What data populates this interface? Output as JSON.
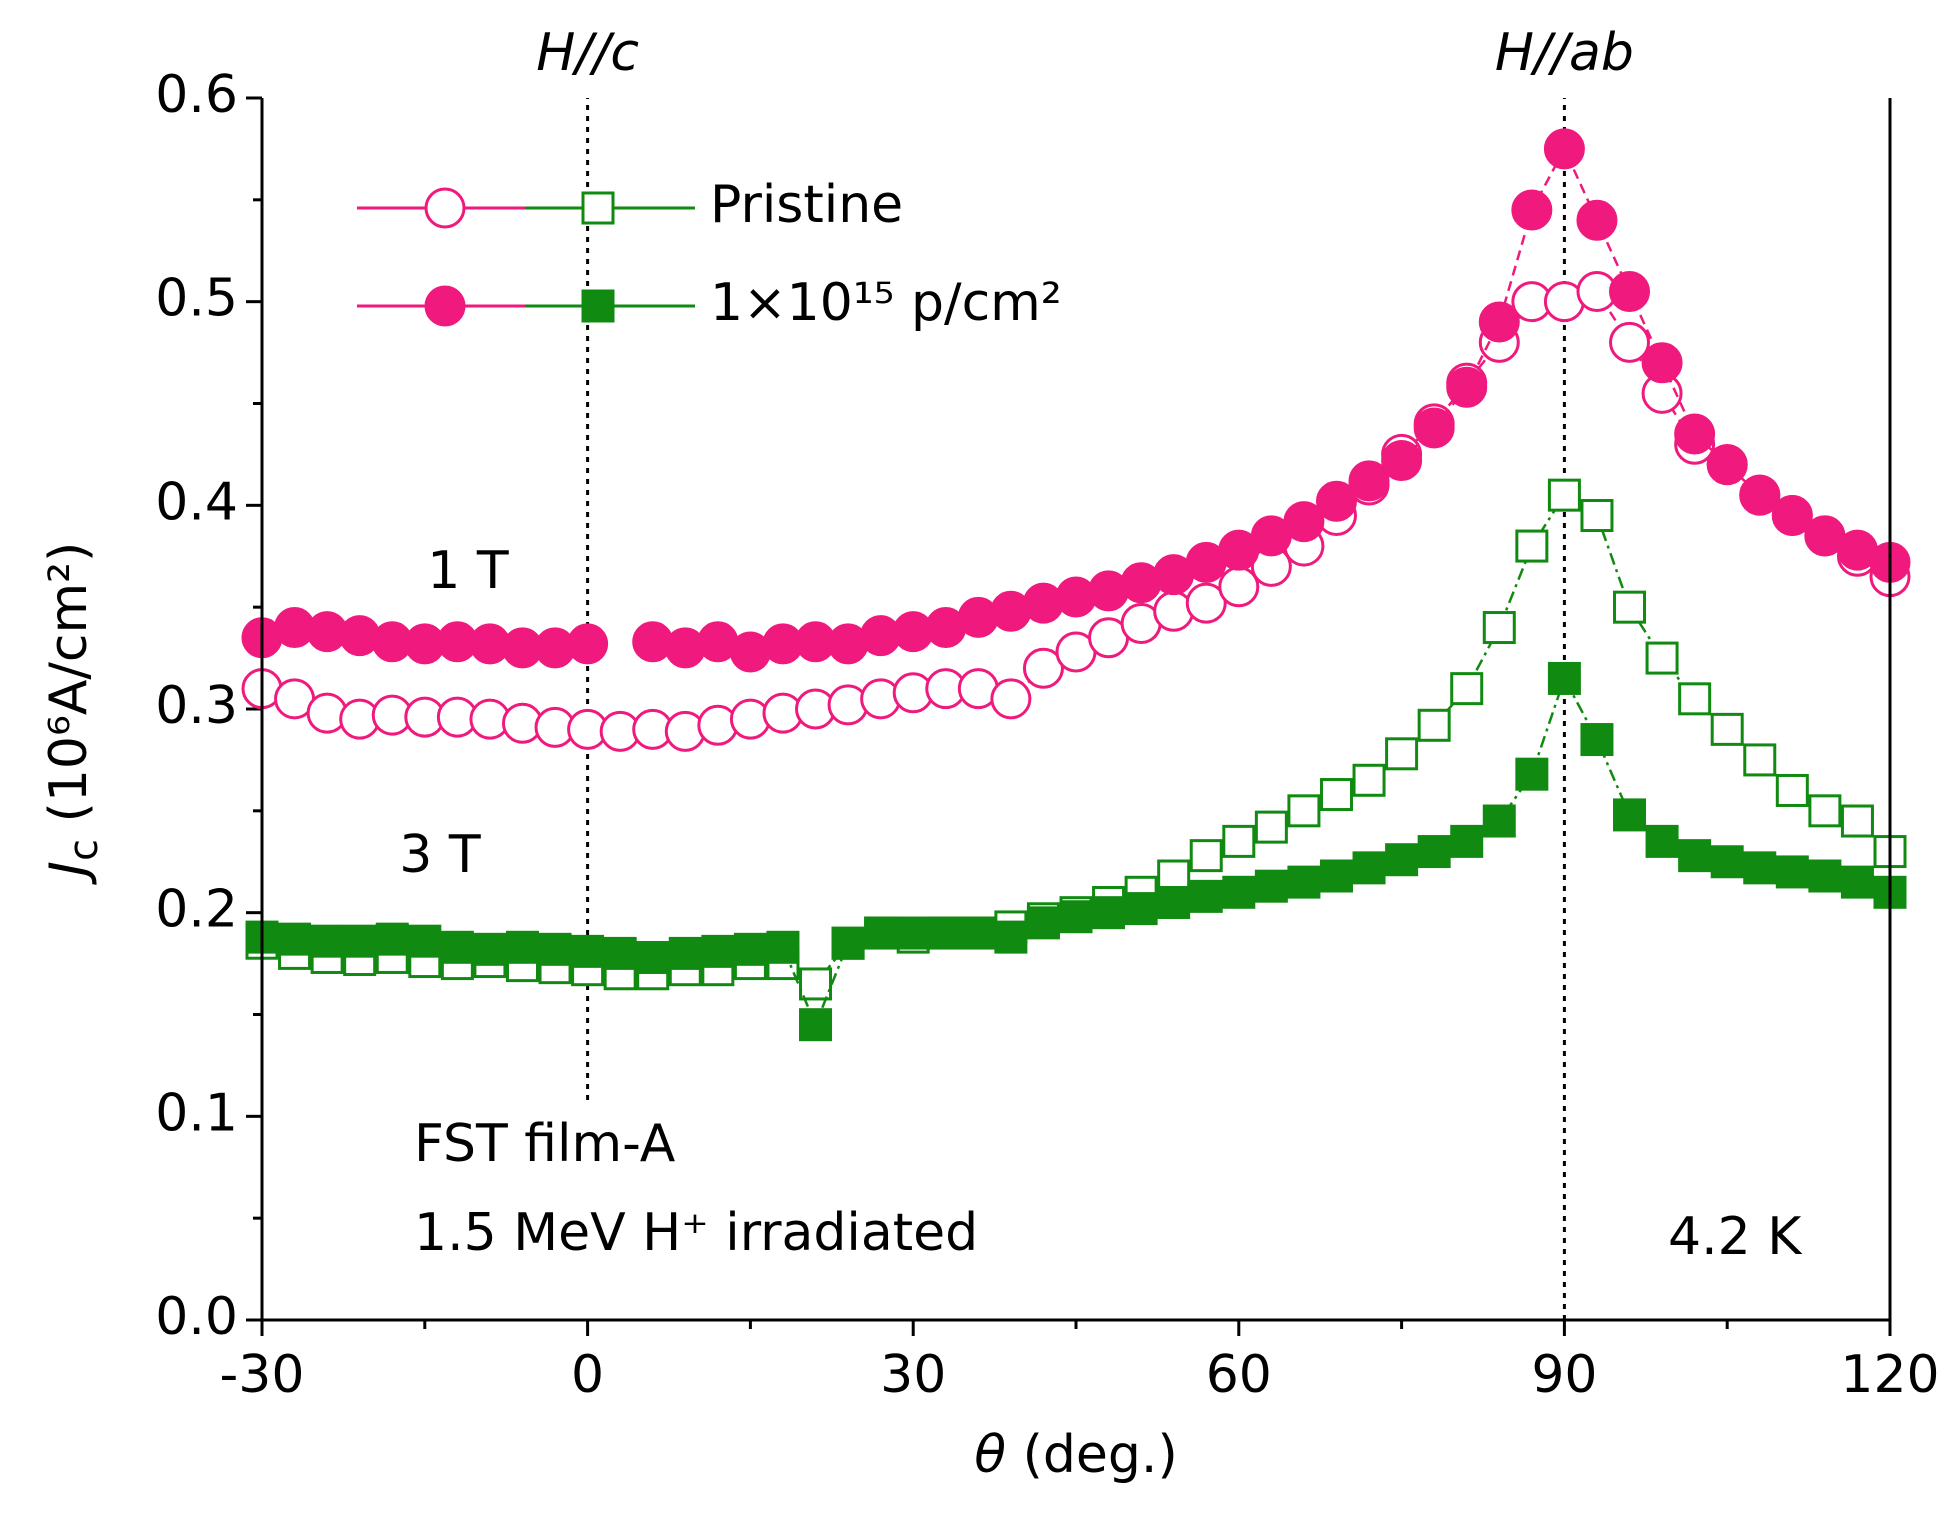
{
  "chart_data": {
    "type": "scatter",
    "x_label": [
      "θ",
      " (deg.)"
    ],
    "y_label": [
      "J",
      "c",
      " (10⁶A/cm²)"
    ],
    "annotations": [
      "FST film-A",
      "1.5 MeV H⁺ irradiated",
      "4.2 K"
    ],
    "reference_lines": [
      {
        "x": 0,
        "label": "H//c"
      },
      {
        "x": 90,
        "label": "H//ab"
      }
    ],
    "xlim": [
      -30,
      120
    ],
    "xticks": [
      -30,
      0,
      30,
      60,
      90,
      120
    ],
    "ylim": [
      0,
      0.6
    ],
    "yticks": [
      {
        "value": 0,
        "label": "0.0"
      },
      0.1,
      0.2,
      0.3,
      0.4,
      0.5,
      0.6
    ],
    "x": [
      -30,
      -27,
      -24,
      -21,
      -18,
      -15,
      -12,
      -9,
      -6,
      -3,
      0,
      3,
      6,
      9,
      12,
      15,
      18,
      21,
      24,
      27,
      30,
      33,
      36,
      39,
      42,
      45,
      48,
      51,
      54,
      57,
      60,
      63,
      66,
      69,
      72,
      75,
      78,
      81,
      84,
      87,
      90,
      93,
      96,
      99,
      102,
      105,
      108,
      111,
      114,
      117,
      120
    ],
    "series": [
      {
        "name": "Pristine",
        "field": "1 T",
        "color": "#f0197d",
        "marker": "circle",
        "filled": false,
        "values": [
          0.31,
          0.305,
          0.298,
          0.295,
          0.297,
          0.296,
          0.296,
          0.295,
          0.293,
          0.291,
          0.29,
          0.289,
          0.29,
          0.289,
          0.292,
          0.295,
          0.298,
          0.3,
          0.302,
          0.305,
          0.308,
          0.31,
          0.31,
          0.305,
          0.32,
          0.328,
          0.335,
          0.342,
          0.348,
          0.352,
          0.36,
          0.37,
          0.38,
          0.395,
          0.41,
          0.425,
          0.44,
          0.46,
          0.48,
          0.5,
          0.5,
          0.505,
          0.48,
          0.455,
          0.43,
          0.42,
          0.405,
          0.395,
          0.385,
          0.375,
          0.365
        ]
      },
      {
        "name": "1×10¹⁵ p/cm²",
        "field": "1 T",
        "color": "#f0197d",
        "marker": "circle",
        "filled": true,
        "values": [
          0.335,
          0.34,
          0.338,
          0.336,
          0.333,
          0.332,
          0.333,
          0.332,
          0.33,
          0.33,
          0.332,
          null,
          0.333,
          0.33,
          0.333,
          0.328,
          0.332,
          0.333,
          0.332,
          0.336,
          0.338,
          0.34,
          0.345,
          0.348,
          0.352,
          0.355,
          0.358,
          0.362,
          0.366,
          0.372,
          0.378,
          0.385,
          0.392,
          0.402,
          0.412,
          0.422,
          0.438,
          0.458,
          0.49,
          0.545,
          0.575,
          0.54,
          0.505,
          0.47,
          0.435,
          0.42,
          0.405,
          0.395,
          0.385,
          0.378,
          0.372
        ]
      },
      {
        "name": "Pristine",
        "field": "3 T",
        "color": "#118a11",
        "marker": "square",
        "filled": false,
        "values": [
          0.185,
          0.18,
          0.178,
          0.177,
          0.178,
          0.176,
          0.175,
          0.176,
          0.174,
          0.173,
          0.172,
          0.17,
          0.17,
          0.172,
          0.172,
          0.175,
          0.175,
          0.165,
          0.185,
          0.19,
          0.188,
          0.19,
          0.19,
          0.193,
          0.197,
          0.2,
          0.205,
          0.21,
          0.218,
          0.228,
          0.235,
          0.242,
          0.25,
          0.258,
          0.265,
          0.278,
          0.292,
          0.31,
          0.34,
          0.38,
          0.405,
          0.395,
          0.35,
          0.325,
          0.305,
          0.29,
          0.275,
          0.26,
          0.25,
          0.245,
          0.23
        ]
      },
      {
        "name": "1×10¹⁵ p/cm²",
        "field": "3 T",
        "color": "#118a11",
        "marker": "square",
        "filled": true,
        "values": [
          0.188,
          0.187,
          0.186,
          0.186,
          0.187,
          0.186,
          0.183,
          0.182,
          0.183,
          0.182,
          0.181,
          0.18,
          0.178,
          0.18,
          0.181,
          0.182,
          0.183,
          0.145,
          0.185,
          0.19,
          0.19,
          0.19,
          0.19,
          0.188,
          0.195,
          0.198,
          0.2,
          0.202,
          0.205,
          0.208,
          0.21,
          0.213,
          0.215,
          0.218,
          0.222,
          0.226,
          0.23,
          0.235,
          0.245,
          0.268,
          0.315,
          0.285,
          0.248,
          0.235,
          0.228,
          0.225,
          0.222,
          0.22,
          0.218,
          0.215,
          0.21
        ]
      }
    ]
  }
}
